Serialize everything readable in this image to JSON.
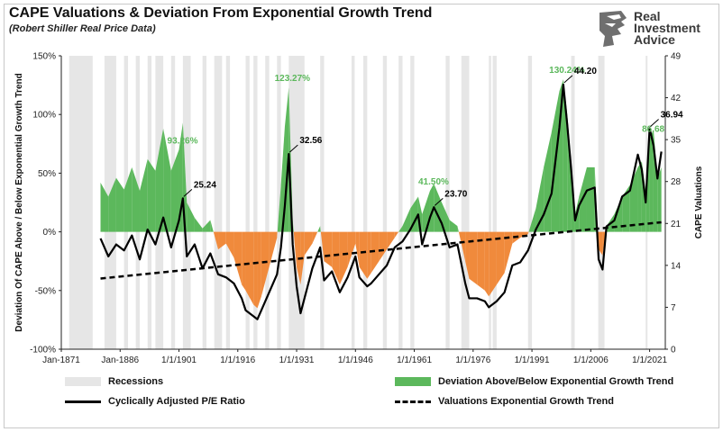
{
  "header": {
    "title": "CAPE Valuations & Deviation From Exponential Growth Trend",
    "subtitle": "(Robert Shiller Real Price Data)"
  },
  "logo": {
    "line1": "Real",
    "line2": "Investment",
    "line3": "Advice",
    "icon": "eagle-head-icon"
  },
  "colors": {
    "recession": "#e6e6e6",
    "deviation_positive": "#5cb85c",
    "deviation_negative": "#f08a3c",
    "cape_line": "#000000",
    "trend_line": "#000000",
    "annotation_green": "#5cb85c"
  },
  "chart_data": {
    "type": "line",
    "title": "CAPE Valuations & Deviation From Exponential Growth Trend",
    "subtitle": "(Robert Shiller Real Price Data)",
    "xlabel": "",
    "x_ticks": [
      "Jan-1871",
      "Jan-1886",
      "1/1/1901",
      "1/1/1916",
      "1/1/1931",
      "1/1/1946",
      "1/1/1961",
      "1/1/1976",
      "1/1/1991",
      "1/1/2006",
      "1/1/2021"
    ],
    "xlim": [
      1871,
      2025
    ],
    "y_left": {
      "label": "Deviation Of CAPE Above / Below Exponential Growth Trend",
      "ticks": [
        "150%",
        "100%",
        "50%",
        "0%",
        "-50%",
        "-100%"
      ],
      "ylim": [
        -100,
        150
      ]
    },
    "y_right": {
      "label": "CAPE Valuations",
      "ticks": [
        "49",
        "42",
        "35",
        "28",
        "21",
        "14",
        "7",
        "0"
      ],
      "ylim": [
        0,
        49
      ]
    },
    "grid": false,
    "legend_position": "bottom",
    "series": [
      {
        "name": "Deviation Above/Below Exponential Growth Trend",
        "axis": "left",
        "style": "area",
        "x": [
          1881,
          1883,
          1885,
          1887,
          1889,
          1891,
          1893,
          1895,
          1897,
          1899,
          1901,
          1902,
          1903,
          1905,
          1907,
          1909,
          1911,
          1913,
          1915,
          1917,
          1918,
          1920,
          1921,
          1922,
          1924,
          1926,
          1927,
          1928,
          1929,
          1930,
          1931,
          1932,
          1933,
          1935,
          1937,
          1938,
          1940,
          1942,
          1944,
          1946,
          1947,
          1949,
          1950,
          1952,
          1954,
          1956,
          1958,
          1960,
          1962,
          1963,
          1965,
          1966,
          1968,
          1970,
          1972,
          1974,
          1975,
          1977,
          1979,
          1980,
          1982,
          1984,
          1986,
          1988,
          1990,
          1992,
          1994,
          1996,
          1998,
          1999,
          2000,
          2001,
          2002,
          2003,
          2005,
          2007,
          2008,
          2009,
          2010,
          2012,
          2014,
          2016,
          2018,
          2019,
          2020,
          2021,
          2022,
          2023,
          2024
        ],
        "values": [
          42,
          30,
          46,
          36,
          55,
          35,
          62,
          52,
          88,
          52,
          70,
          93,
          25,
          12,
          3,
          10,
          -15,
          -10,
          -22,
          -45,
          -50,
          -62,
          -65,
          -55,
          -30,
          -5,
          40,
          90,
          123,
          10,
          -30,
          -45,
          -20,
          -10,
          5,
          -25,
          -30,
          -45,
          -30,
          -10,
          -30,
          -40,
          -35,
          -25,
          -15,
          -5,
          5,
          20,
          30,
          15,
          35,
          41,
          25,
          10,
          5,
          -25,
          -40,
          -45,
          -50,
          -55,
          -45,
          -35,
          -10,
          -5,
          -2,
          20,
          55,
          85,
          120,
          130,
          100,
          60,
          15,
          30,
          55,
          55,
          -15,
          -20,
          5,
          15,
          30,
          40,
          55,
          60,
          35,
          80,
          87,
          45,
          55
        ]
      },
      {
        "name": "Cyclically Adjusted P/E Ratio",
        "axis": "right",
        "style": "line",
        "x": [
          1881,
          1883,
          1885,
          1887,
          1889,
          1891,
          1893,
          1895,
          1897,
          1899,
          1901,
          1902,
          1903,
          1905,
          1907,
          1909,
          1911,
          1913,
          1915,
          1917,
          1918,
          1920,
          1921,
          1922,
          1924,
          1926,
          1927,
          1928,
          1929,
          1930,
          1931,
          1932,
          1933,
          1935,
          1937,
          1938,
          1940,
          1942,
          1944,
          1946,
          1947,
          1949,
          1950,
          1952,
          1954,
          1956,
          1958,
          1960,
          1962,
          1963,
          1965,
          1966,
          1968,
          1970,
          1972,
          1974,
          1975,
          1977,
          1979,
          1980,
          1982,
          1984,
          1986,
          1988,
          1990,
          1992,
          1994,
          1996,
          1998,
          1999,
          2000,
          2001,
          2002,
          2003,
          2005,
          2007,
          2008,
          2009,
          2010,
          2012,
          2014,
          2016,
          2018,
          2019,
          2020,
          2021,
          2022,
          2023,
          2024
        ],
        "values": [
          18.5,
          15.5,
          17.5,
          16.5,
          19.0,
          15.0,
          20.0,
          17.5,
          22.0,
          17.0,
          21.5,
          25.2,
          15.5,
          17.5,
          13.5,
          16.0,
          12.5,
          12.0,
          11.0,
          8.5,
          6.5,
          5.5,
          5.0,
          6.5,
          9.5,
          12.5,
          17.0,
          24.0,
          32.6,
          17.5,
          10.5,
          6.0,
          8.5,
          13.5,
          17.0,
          11.5,
          13.0,
          9.5,
          12.0,
          15.5,
          12.0,
          10.5,
          11.0,
          12.5,
          14.0,
          17.0,
          18.0,
          20.0,
          22.5,
          17.5,
          22.0,
          23.7,
          21.0,
          17.0,
          17.5,
          11.0,
          8.5,
          8.5,
          8.0,
          7.0,
          8.0,
          9.5,
          14.0,
          14.5,
          16.5,
          20.0,
          22.5,
          26.0,
          37.0,
          44.2,
          37.5,
          30.0,
          21.5,
          24.0,
          26.5,
          27.0,
          15.0,
          13.3,
          20.5,
          21.5,
          25.5,
          26.5,
          32.5,
          30.0,
          24.5,
          36.9,
          34.0,
          28.5,
          33.0
        ]
      },
      {
        "name": "Valuations Exponential Growth Trend",
        "axis": "right",
        "style": "dashed",
        "x": [
          1881,
          2024
        ],
        "values": [
          11.8,
          21.2
        ]
      }
    ],
    "recessions": [
      [
        1873,
        1879
      ],
      [
        1882,
        1885
      ],
      [
        1887,
        1888
      ],
      [
        1890,
        1891
      ],
      [
        1893,
        1894
      ],
      [
        1895,
        1897
      ],
      [
        1899,
        1900
      ],
      [
        1902,
        1904
      ],
      [
        1907,
        1908
      ],
      [
        1910,
        1912
      ],
      [
        1913,
        1914
      ],
      [
        1918,
        1919
      ],
      [
        1920,
        1921
      ],
      [
        1923,
        1924
      ],
      [
        1926,
        1927
      ],
      [
        1929,
        1933
      ],
      [
        1937,
        1938
      ],
      [
        1945,
        1945.8
      ],
      [
        1948,
        1949
      ],
      [
        1953,
        1954
      ],
      [
        1957,
        1958
      ],
      [
        1960,
        1961
      ],
      [
        1969,
        1970
      ],
      [
        1973,
        1975
      ],
      [
        1980,
        1980.6
      ],
      [
        1981,
        1982
      ],
      [
        1990,
        1991
      ],
      [
        2001,
        2001.9
      ],
      [
        2007.9,
        2009.5
      ],
      [
        2020,
        2020.4
      ]
    ],
    "annotations": [
      {
        "text": "93.26%",
        "x": 1901,
        "series": "deviation",
        "color": "green"
      },
      {
        "text": "123.27%",
        "x": 1929,
        "series": "deviation",
        "color": "green"
      },
      {
        "text": "41.50%",
        "x": 1965,
        "series": "deviation",
        "color": "green"
      },
      {
        "text": "130.24%",
        "x": 1999,
        "series": "deviation",
        "color": "green"
      },
      {
        "text": "86.68",
        "x": 2021,
        "series": "deviation",
        "color": "green"
      },
      {
        "text": "25.24",
        "x": 1902,
        "series": "cape",
        "color": "black"
      },
      {
        "text": "32.56",
        "x": 1929,
        "series": "cape",
        "color": "black"
      },
      {
        "text": "23.70",
        "x": 1966,
        "series": "cape",
        "color": "black"
      },
      {
        "text": "44.20",
        "x": 1999,
        "series": "cape",
        "color": "black"
      },
      {
        "text": "36.94",
        "x": 2021,
        "series": "cape",
        "color": "black"
      }
    ]
  },
  "legend": {
    "recessions": "Recessions",
    "deviation": "Deviation Above/Below Exponential Growth Trend",
    "cape": "Cyclically Adjusted P/E Ratio",
    "trend": "Valuations Exponential Growth Trend"
  }
}
